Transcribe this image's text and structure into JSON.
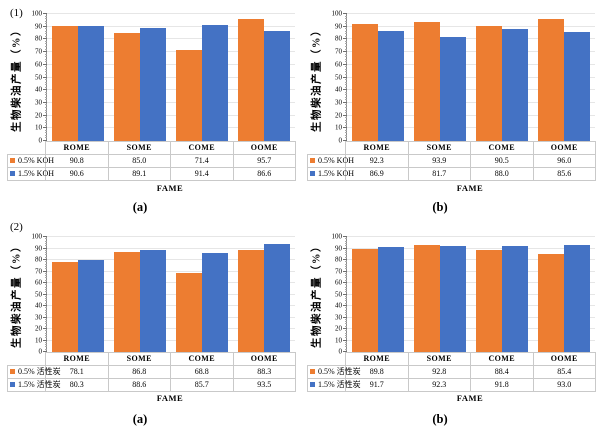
{
  "colors": {
    "series_orange": "#ED7D31",
    "series_blue": "#4472C4",
    "gridline": "#e6e6e6",
    "axis": "#6e6e6e",
    "table_border": "#c9c9c9"
  },
  "chart_data": [
    {
      "type": "bar",
      "panel_label": "(1)",
      "caption": "(a)",
      "ylabel": "生物柴油产量（%）",
      "xlabel": "FAME",
      "ylim": [
        0,
        100
      ],
      "ytick_step": 10,
      "minor_tick_step": 2,
      "grid": true,
      "legend_position": "table-left",
      "categories": [
        "ROME",
        "SOME",
        "COME",
        "OOME"
      ],
      "series": [
        {
          "name": "0.5% KOH",
          "color": "#ED7D31",
          "values": [
            90.8,
            85.0,
            71.4,
            95.7
          ]
        },
        {
          "name": "1.5% KOH",
          "color": "#4472C4",
          "values": [
            90.6,
            89.1,
            91.4,
            86.6
          ]
        }
      ]
    },
    {
      "type": "bar",
      "panel_label": "",
      "caption": "(b)",
      "ylabel": "生物柴油产量（%）",
      "xlabel": "FAME",
      "ylim": [
        0,
        100
      ],
      "ytick_step": 10,
      "minor_tick_step": 2,
      "grid": true,
      "legend_position": "table-left",
      "categories": [
        "ROME",
        "SOME",
        "COME",
        "OOME"
      ],
      "series": [
        {
          "name": "0.5% KOH",
          "color": "#ED7D31",
          "values": [
            92.3,
            93.9,
            90.5,
            96.0
          ]
        },
        {
          "name": "1.5% KOH",
          "color": "#4472C4",
          "values": [
            86.9,
            81.7,
            88.0,
            85.6
          ]
        }
      ]
    },
    {
      "type": "bar",
      "panel_label": "(2)",
      "caption": "(a)",
      "ylabel": "生物柴油产量（%）",
      "xlabel": "FAME",
      "ylim": [
        0,
        100
      ],
      "ytick_step": 10,
      "minor_tick_step": 2,
      "grid": true,
      "legend_position": "table-left",
      "categories": [
        "ROME",
        "SOME",
        "COME",
        "OOME"
      ],
      "series": [
        {
          "name": "0.5% 活性炭",
          "color": "#ED7D31",
          "values": [
            78.1,
            86.8,
            68.8,
            88.3
          ]
        },
        {
          "name": "1.5% 活性炭",
          "color": "#4472C4",
          "values": [
            80.3,
            88.6,
            85.7,
            93.5
          ]
        }
      ]
    },
    {
      "type": "bar",
      "panel_label": "",
      "caption": "(b)",
      "ylabel": "生物柴油产量（%）",
      "xlabel": "FAME",
      "ylim": [
        0,
        100
      ],
      "ytick_step": 10,
      "minor_tick_step": 2,
      "grid": true,
      "legend_position": "table-left",
      "categories": [
        "ROME",
        "SOME",
        "COME",
        "OOME"
      ],
      "series": [
        {
          "name": "0.5% 活性炭",
          "color": "#ED7D31",
          "values": [
            89.8,
            92.8,
            88.4,
            85.4
          ]
        },
        {
          "name": "1.5% 活性炭",
          "color": "#4472C4",
          "values": [
            91.7,
            92.3,
            91.8,
            93.0
          ]
        }
      ]
    }
  ]
}
